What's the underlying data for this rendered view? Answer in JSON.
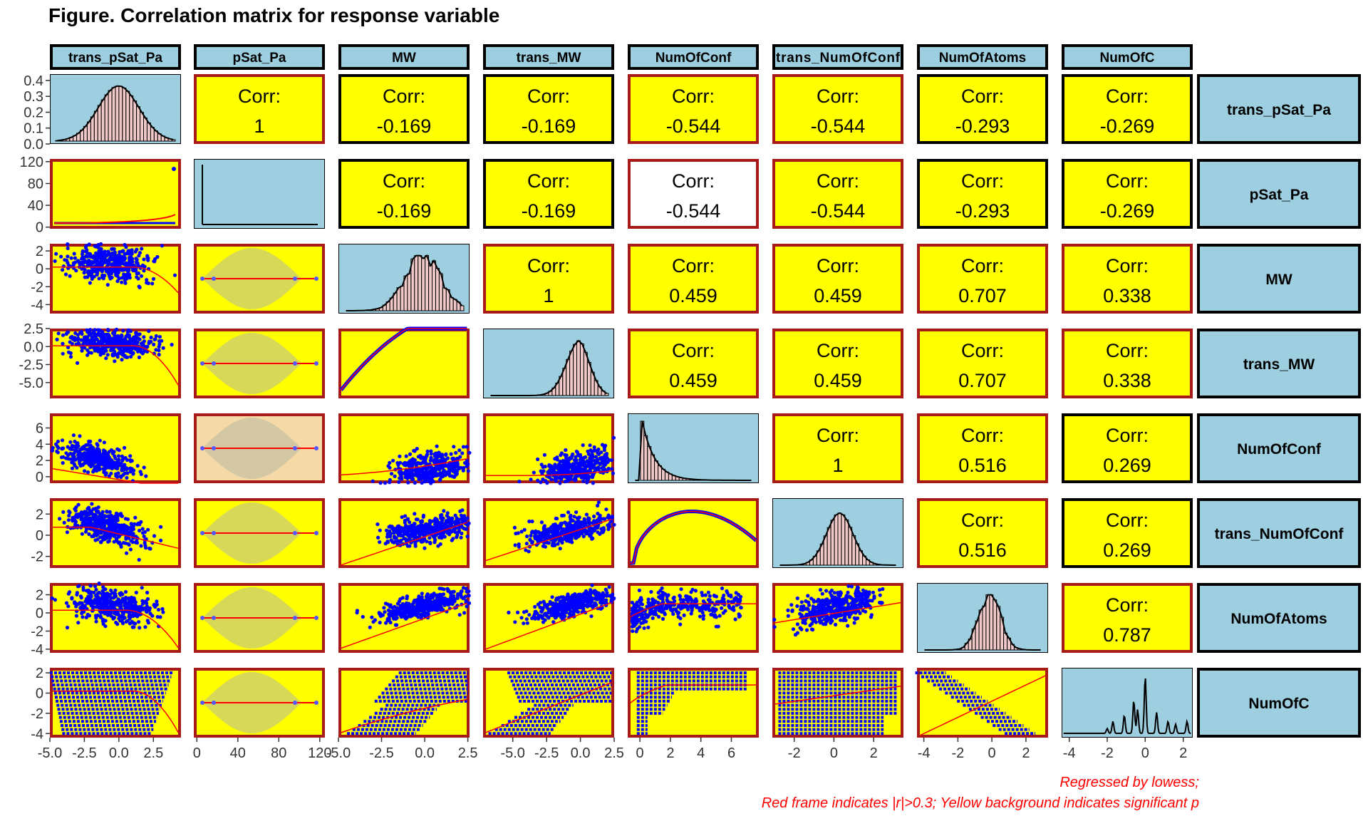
{
  "title": "Figure. Correlation matrix for response variable",
  "caption": {
    "line1": "Regressed by lowess;",
    "line2": "Red frame indicates |r|>0.3; Yellow background indicates significant p"
  },
  "colors": {
    "strip": "#9ecfe0",
    "signif_bg": "#ffff00",
    "nonsignif_bg": "#ffffff",
    "red_frame": "#a81a1a",
    "points": "#0000ff",
    "lowess": "#ff0000",
    "hist_bar": "#f0c8c8",
    "beige": "#f5d9a6"
  },
  "chart_data": {
    "type": "scatter-matrix",
    "variables": [
      "trans_pSat_Pa",
      "pSat_Pa",
      "MW",
      "trans_MW",
      "NumOfConf",
      "trans_NumOfConf",
      "NumOfAtoms",
      "NumOfC"
    ],
    "correlations": [
      [
        null,
        "1",
        "-0.169",
        "-0.169",
        "-0.544",
        "-0.544",
        "-0.293",
        "-0.269"
      ],
      [
        null,
        null,
        "-0.169",
        "-0.169",
        "-0.544",
        "-0.544",
        "-0.293",
        "-0.269"
      ],
      [
        null,
        null,
        null,
        "1",
        "0.459",
        "0.459",
        "0.707",
        "0.338"
      ],
      [
        null,
        null,
        null,
        null,
        "0.459",
        "0.459",
        "0.707",
        "0.338"
      ],
      [
        null,
        null,
        null,
        null,
        null,
        "1",
        "0.516",
        "0.269"
      ],
      [
        null,
        null,
        null,
        null,
        null,
        null,
        "0.516",
        "0.269"
      ],
      [
        null,
        null,
        null,
        null,
        null,
        null,
        null,
        "0.787"
      ],
      [
        null,
        null,
        null,
        null,
        null,
        null,
        null,
        null
      ]
    ],
    "significant": [
      [
        null,
        true,
        true,
        true,
        true,
        true,
        true,
        true
      ],
      [
        null,
        null,
        true,
        true,
        false,
        true,
        true,
        true
      ],
      [
        null,
        null,
        null,
        true,
        true,
        true,
        true,
        true
      ],
      [
        null,
        null,
        null,
        null,
        true,
        true,
        true,
        true
      ],
      [
        null,
        null,
        null,
        null,
        null,
        true,
        true,
        true
      ],
      [
        null,
        null,
        null,
        null,
        null,
        null,
        true,
        true
      ],
      [
        null,
        null,
        null,
        null,
        null,
        null,
        null,
        true
      ],
      [
        null,
        null,
        null,
        null,
        null,
        null,
        null,
        null
      ]
    ],
    "corr_label": "Corr:",
    "x_axes": [
      {
        "ticks": [
          "-5.0",
          "-2.5",
          "0.0",
          "2.5"
        ],
        "values": [
          -5,
          -2.5,
          0,
          2.5
        ],
        "lim": [
          -5,
          4.5
        ]
      },
      {
        "ticks": [
          "0",
          "40",
          "80",
          "120"
        ],
        "values": [
          0,
          40,
          80,
          120
        ],
        "lim": [
          -3,
          125
        ]
      },
      {
        "ticks": [
          "-5.0",
          "-2.5",
          "0.0",
          "2.5"
        ],
        "values": [
          -5,
          -2.5,
          0,
          2.5
        ],
        "lim": [
          -5,
          2.6
        ]
      },
      {
        "ticks": [
          "-5.0",
          "-2.5",
          "0.0",
          "2.5"
        ],
        "values": [
          -5,
          -2.5,
          0,
          2.5
        ],
        "lim": [
          -7.2,
          2.5
        ]
      },
      {
        "ticks": [
          "0",
          "2",
          "4",
          "6"
        ],
        "values": [
          0,
          2,
          4,
          6
        ],
        "lim": [
          -0.8,
          7.8
        ]
      },
      {
        "ticks": [
          "-2",
          "0",
          "2"
        ],
        "values": [
          -2,
          0,
          2
        ],
        "lim": [
          -3.1,
          3.5
        ]
      },
      {
        "ticks": [
          "-4",
          "-2",
          "0",
          "2"
        ],
        "values": [
          -4,
          -2,
          0,
          2
        ],
        "lim": [
          -4.4,
          3.3
        ]
      },
      {
        "ticks": [
          "-4",
          "-2",
          "0",
          "2"
        ],
        "values": [
          -4,
          -2,
          0,
          2
        ],
        "lim": [
          -4.4,
          2.5
        ]
      }
    ],
    "y_axes": [
      {
        "ticks": [
          "0.4",
          "0.3",
          "0.2",
          "0.1",
          "0.0"
        ],
        "values": [
          0.4,
          0.3,
          0.2,
          0.1,
          0.0
        ],
        "lim": [
          0,
          0.44
        ]
      },
      {
        "ticks": [
          "120",
          "80",
          "40",
          "0"
        ],
        "values": [
          120,
          80,
          40,
          0
        ],
        "lim": [
          -3,
          125
        ]
      },
      {
        "ticks": [
          "2",
          "0",
          "-2",
          "-4"
        ],
        "values": [
          2,
          0,
          -2,
          -4
        ],
        "lim": [
          -5,
          2.8
        ]
      },
      {
        "ticks": [
          "2.5",
          "0.0",
          "-2.5",
          "-5.0"
        ],
        "values": [
          2.5,
          0,
          -2.5,
          -5
        ],
        "lim": [
          -7.2,
          2.5
        ]
      },
      {
        "ticks": [
          "6",
          "4",
          "2",
          "0"
        ],
        "values": [
          6,
          4,
          2,
          0
        ],
        "lim": [
          -0.8,
          7.8
        ]
      },
      {
        "ticks": [
          "2",
          "0",
          "-2"
        ],
        "values": [
          2,
          0,
          -2
        ],
        "lim": [
          -3.1,
          3.5
        ]
      },
      {
        "ticks": [
          "2",
          "0",
          "-2",
          "-4"
        ],
        "values": [
          2,
          0,
          -2,
          -4
        ],
        "lim": [
          -4.4,
          3.3
        ]
      },
      {
        "ticks": [
          "2",
          "0",
          "-2",
          "-4"
        ],
        "values": [
          2,
          0,
          -2,
          -4
        ],
        "lim": [
          -4.4,
          2.5
        ]
      }
    ]
  }
}
